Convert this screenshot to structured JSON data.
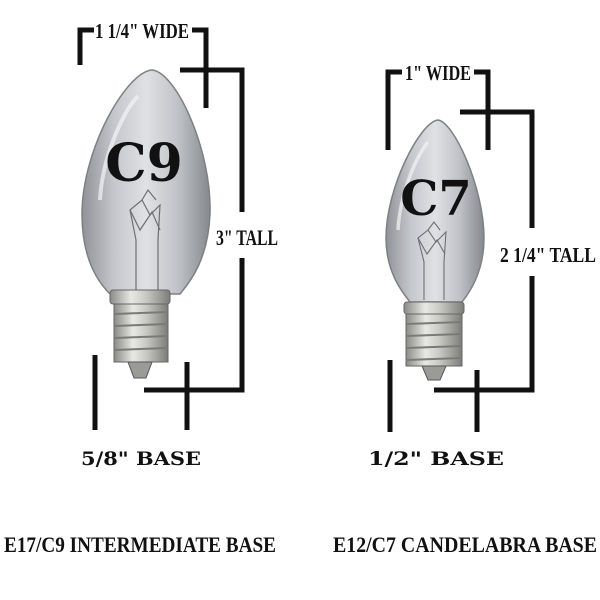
{
  "bulbs": [
    {
      "type_label": "C9",
      "width_label": "1 1/4\" WIDE",
      "height_label": "3\" TALL",
      "base_size_label": "5/8\" BASE",
      "base_name": "E17/C9 INTERMEDIATE BASE"
    },
    {
      "type_label": "C7",
      "width_label": "1\" WIDE",
      "height_label": "2 1/4\" TALL",
      "base_size_label": "1/2\" BASE",
      "base_name": "E12/C7 CANDELABRA BASE"
    }
  ],
  "colors": {
    "background": "#ffffff",
    "ink": "#111111",
    "glass": "#b9bcc2",
    "metal_base": "#c8c8c4"
  }
}
